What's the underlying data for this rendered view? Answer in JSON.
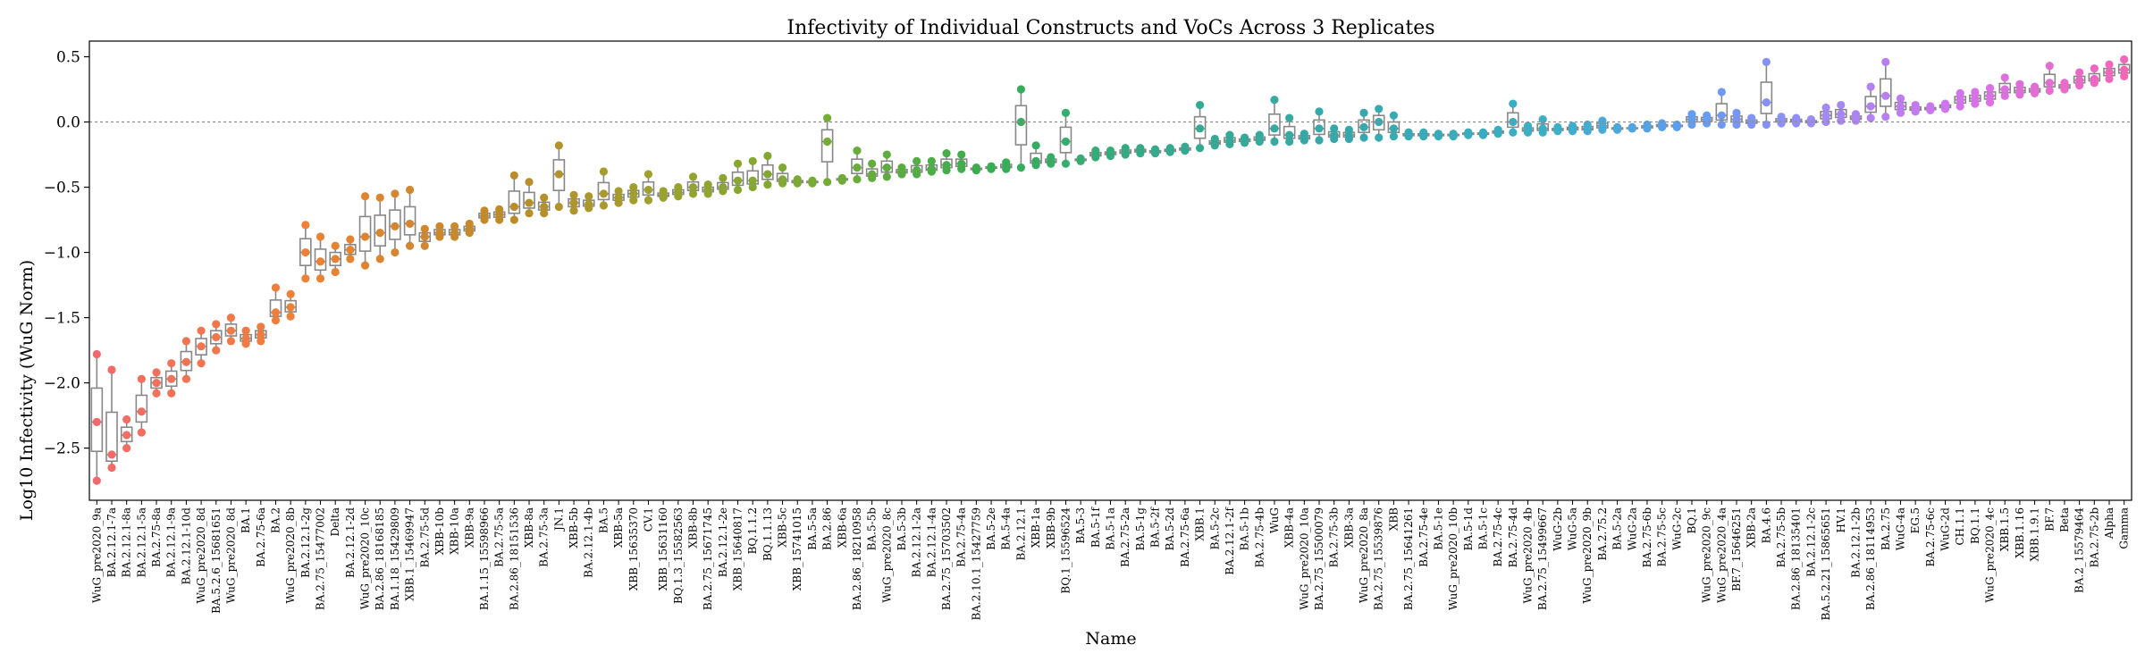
{
  "chart_data": {
    "type": "box",
    "title": "Infectivity of Individual Constructs and VoCs Across 3 Replicates",
    "xlabel": "Name",
    "ylabel": "Log10 Infectivity (WuG Norm)",
    "ylim": [
      -2.9,
      0.62
    ],
    "yticks": [
      -2.5,
      -2.0,
      -1.5,
      -1.0,
      -0.5,
      0.0,
      0.5
    ],
    "ytick_labels": [
      "−2.5",
      "−2.0",
      "−1.5",
      "−1.0",
      "−0.5",
      "0.0",
      "0.5"
    ],
    "reference_line": 0.0,
    "grid": false,
    "categories": [
      "WuG_pre2020_9a",
      "BA.2.12.1-7a",
      "BA.2.12.1-8a",
      "BA.2.12.1-5a",
      "BA.2.75-8a",
      "BA.2.12.1-9a",
      "BA.2.12.1-10d",
      "WuG_pre2020_8d",
      "BA.5.2.6_15681651",
      "WuG_pre2020_8d",
      "BA.1",
      "BA.2.75-6a",
      "BA.2",
      "WuG_pre2020_8b",
      "BA.2.12.1-2g",
      "BA.2.75_15477002",
      "Delta",
      "BA.2.12.1-2d",
      "WuG_pre2020_10c",
      "BA.2.86_18168185",
      "BA.1.18_15429809",
      "XBB.1_15469947",
      "BA.2.75-5d",
      "XBB-10b",
      "XBB-10a",
      "XBB-9a",
      "BA.1.15_15598966",
      "BA.2.75-5a",
      "BA.2.86_18151536",
      "XBB-8a",
      "BA.2.75-3a",
      "JN.1",
      "XBB-5b",
      "BA.2.12.1-4b",
      "BA.5",
      "XBB-5a",
      "XBB_15635370",
      "CV.1",
      "XBB_15631160",
      "BQ.1.3_15582563",
      "XBB-8b",
      "BA.2.75_15671745",
      "BA.2.12.1-2e",
      "XBB_15640817",
      "BQ.1.1.2",
      "BQ.1.1.13",
      "XBB-5c",
      "XBB_15741015",
      "BA.5-5a",
      "BA.2.86",
      "XBB-6a",
      "BA.2.86_18210958",
      "BA.5-5b",
      "WuG_pre2020_8c",
      "BA.5-3b",
      "BA.2.12.1-2a",
      "BA.2.12.1-4a",
      "BA.2.75_15703502",
      "BA.2.75-4a",
      "BA.2.10.1_15427759",
      "BA.5-2e",
      "BA.5-4a",
      "BA.2.12.1",
      "XBB-1a",
      "XBB-9b",
      "BQ.1_15596524",
      "BA.5-3",
      "BA.5-1f",
      "BA.5-1a",
      "BA.2.75-2a",
      "BA.5-1g",
      "BA.5-2f",
      "BA.5-2d",
      "BA.2.75-6a",
      "XBB.1",
      "BA.5-2c",
      "BA.2.12.1-2f",
      "BA.5-1b",
      "BA.2.75-4b",
      "WuG",
      "XBB-4a",
      "WuG_pre2020_10a",
      "BA.2.75_15500079",
      "BA.2.75-3b",
      "XBB-3a",
      "WuG_pre2020_8a",
      "BA.2.75_15539876",
      "XBB",
      "BA.2.75_15641261",
      "BA.2.75-4e",
      "BA.5-1e",
      "WuG_pre2020_10b",
      "BA.5-1d",
      "BA.5-1c",
      "BA.2.75-4c",
      "BA.2.75-4d",
      "WuG_pre2020_4b",
      "BA.2.75_15499667",
      "WuG-2b",
      "WuG-5a",
      "WuG_pre2020_9b",
      "BA.2.75.2",
      "BA.5-2a",
      "WuG-2a",
      "BA.2.75-6b",
      "BA.2.75-5c",
      "WuG-2c",
      "BQ.1",
      "WuG_pre2020_9c",
      "WuG_pre2020_4a",
      "BF.7_15646251",
      "XBB-2a",
      "BA.4.6",
      "BA.2.75-5b",
      "BA.2.86_18135401",
      "BA.2.12.1-2c",
      "BA.5.2.21_15865651",
      "HV.1",
      "BA.2.12.1-2b",
      "BA.2.86_18114953",
      "BA.2.75",
      "WuG-4a",
      "EG.5",
      "BA.2.75-6c",
      "WuG-2d",
      "CH.1.1",
      "BQ.1.1",
      "WuG_pre2020_4c",
      "XBB.1.5",
      "XBB.1.16",
      "XBB.1.9.1",
      "BF.7",
      "Beta",
      "BA.2_15579464",
      "BA.2.75-2b",
      "Alpha",
      "Gamma"
    ],
    "values": [
      [
        -2.75,
        -2.3,
        -1.78
      ],
      [
        -2.65,
        -2.55,
        -1.9
      ],
      [
        -2.5,
        -2.4,
        -2.28
      ],
      [
        -2.38,
        -2.22,
        -1.97
      ],
      [
        -2.08,
        -2.0,
        -1.92
      ],
      [
        -2.08,
        -1.97,
        -1.85
      ],
      [
        -1.97,
        -1.84,
        -1.68
      ],
      [
        -1.85,
        -1.72,
        -1.6
      ],
      [
        -1.75,
        -1.65,
        -1.55
      ],
      [
        -1.68,
        -1.6,
        -1.5
      ],
      [
        -1.7,
        -1.66,
        -1.6
      ],
      [
        -1.68,
        -1.63,
        -1.57
      ],
      [
        -1.52,
        -1.46,
        -1.27
      ],
      [
        -1.49,
        -1.42,
        -1.32
      ],
      [
        -1.2,
        -1.0,
        -0.79
      ],
      [
        -1.2,
        -1.07,
        -0.88
      ],
      [
        -1.15,
        -1.05,
        -0.95
      ],
      [
        -1.05,
        -0.98,
        -0.9
      ],
      [
        -1.1,
        -0.88,
        -0.57
      ],
      [
        -1.05,
        -0.85,
        -0.58
      ],
      [
        -1.0,
        -0.8,
        -0.55
      ],
      [
        -0.95,
        -0.78,
        -0.52
      ],
      [
        -0.95,
        -0.88,
        -0.82
      ],
      [
        -0.88,
        -0.85,
        -0.8
      ],
      [
        -0.88,
        -0.85,
        -0.8
      ],
      [
        -0.85,
        -0.82,
        -0.78
      ],
      [
        -0.75,
        -0.72,
        -0.68
      ],
      [
        -0.75,
        -0.71,
        -0.67
      ],
      [
        -0.75,
        -0.65,
        -0.41
      ],
      [
        -0.7,
        -0.62,
        -0.46
      ],
      [
        -0.7,
        -0.65,
        -0.58
      ],
      [
        -0.65,
        -0.4,
        -0.18
      ],
      [
        -0.68,
        -0.62,
        -0.56
      ],
      [
        -0.66,
        -0.63,
        -0.57
      ],
      [
        -0.64,
        -0.55,
        -0.38
      ],
      [
        -0.62,
        -0.58,
        -0.53
      ],
      [
        -0.6,
        -0.55,
        -0.5
      ],
      [
        -0.6,
        -0.52,
        -0.4
      ],
      [
        -0.58,
        -0.56,
        -0.53
      ],
      [
        -0.57,
        -0.54,
        -0.5
      ],
      [
        -0.55,
        -0.5,
        -0.42
      ],
      [
        -0.55,
        -0.52,
        -0.48
      ],
      [
        -0.53,
        -0.5,
        -0.43
      ],
      [
        -0.52,
        -0.45,
        -0.32
      ],
      [
        -0.5,
        -0.45,
        -0.3
      ],
      [
        -0.48,
        -0.4,
        -0.26
      ],
      [
        -0.47,
        -0.44,
        -0.35
      ],
      [
        -0.47,
        -0.46,
        -0.44
      ],
      [
        -0.47,
        -0.46,
        -0.45
      ],
      [
        -0.46,
        -0.15,
        0.03
      ],
      [
        -0.45,
        -0.44,
        -0.43
      ],
      [
        -0.44,
        -0.35,
        -0.22
      ],
      [
        -0.43,
        -0.4,
        -0.32
      ],
      [
        -0.42,
        -0.35,
        -0.25
      ],
      [
        -0.4,
        -0.38,
        -0.35
      ],
      [
        -0.4,
        -0.37,
        -0.3
      ],
      [
        -0.38,
        -0.36,
        -0.3
      ],
      [
        -0.37,
        -0.33,
        -0.24
      ],
      [
        -0.36,
        -0.32,
        -0.25
      ],
      [
        -0.37,
        -0.36,
        -0.35
      ],
      [
        -0.36,
        -0.35,
        -0.34
      ],
      [
        -0.36,
        -0.34,
        -0.31
      ],
      [
        -0.35,
        0.0,
        0.25
      ],
      [
        -0.33,
        -0.3,
        -0.18
      ],
      [
        -0.32,
        -0.3,
        -0.27
      ],
      [
        -0.32,
        -0.15,
        0.07
      ],
      [
        -0.3,
        -0.29,
        -0.28
      ],
      [
        -0.27,
        -0.25,
        -0.22
      ],
      [
        -0.26,
        -0.24,
        -0.22
      ],
      [
        -0.25,
        -0.23,
        -0.2
      ],
      [
        -0.24,
        -0.22,
        -0.2
      ],
      [
        -0.24,
        -0.23,
        -0.21
      ],
      [
        -0.23,
        -0.22,
        -0.2
      ],
      [
        -0.22,
        -0.21,
        -0.19
      ],
      [
        -0.2,
        -0.05,
        0.13
      ],
      [
        -0.18,
        -0.16,
        -0.13
      ],
      [
        -0.17,
        -0.14,
        -0.1
      ],
      [
        -0.16,
        -0.14,
        -0.12
      ],
      [
        -0.15,
        -0.13,
        -0.1
      ],
      [
        -0.15,
        -0.05,
        0.17
      ],
      [
        -0.15,
        -0.1,
        0.03
      ],
      [
        -0.14,
        -0.12,
        -0.09
      ],
      [
        -0.14,
        -0.05,
        0.08
      ],
      [
        -0.13,
        -0.1,
        -0.05
      ],
      [
        -0.13,
        -0.1,
        -0.06
      ],
      [
        -0.12,
        -0.04,
        0.07
      ],
      [
        -0.12,
        0.0,
        0.1
      ],
      [
        -0.11,
        -0.05,
        0.05
      ],
      [
        -0.11,
        -0.1,
        -0.08
      ],
      [
        -0.11,
        -0.1,
        -0.08
      ],
      [
        -0.11,
        -0.1,
        -0.09
      ],
      [
        -0.11,
        -0.1,
        -0.09
      ],
      [
        -0.1,
        -0.09,
        -0.08
      ],
      [
        -0.1,
        -0.09,
        -0.08
      ],
      [
        -0.09,
        -0.08,
        -0.06
      ],
      [
        -0.08,
        0.0,
        0.14
      ],
      [
        -0.08,
        -0.06,
        -0.03
      ],
      [
        -0.08,
        -0.05,
        0.02
      ],
      [
        -0.07,
        -0.06,
        -0.04
      ],
      [
        -0.07,
        -0.05,
        -0.03
      ],
      [
        -0.07,
        -0.05,
        -0.02
      ],
      [
        -0.06,
        -0.03,
        0.01
      ],
      [
        -0.06,
        -0.05,
        -0.04
      ],
      [
        -0.05,
        -0.05,
        -0.04
      ],
      [
        -0.05,
        -0.04,
        -0.02
      ],
      [
        -0.04,
        -0.03,
        -0.01
      ],
      [
        -0.04,
        -0.03,
        -0.02
      ],
      [
        -0.02,
        0.02,
        0.06
      ],
      [
        -0.01,
        0.02,
        0.05
      ],
      [
        -0.02,
        0.05,
        0.23
      ],
      [
        -0.02,
        0.02,
        0.07
      ],
      [
        -0.02,
        0.0,
        0.03
      ],
      [
        -0.02,
        0.15,
        0.46
      ],
      [
        -0.01,
        0.01,
        0.04
      ],
      [
        -0.01,
        0.01,
        0.03
      ],
      [
        -0.01,
        0.0,
        0.02
      ],
      [
        0.0,
        0.05,
        0.11
      ],
      [
        0.01,
        0.06,
        0.13
      ],
      [
        0.01,
        0.03,
        0.06
      ],
      [
        0.03,
        0.12,
        0.27
      ],
      [
        0.04,
        0.2,
        0.46
      ],
      [
        0.07,
        0.12,
        0.18
      ],
      [
        0.08,
        0.1,
        0.13
      ],
      [
        0.09,
        0.1,
        0.12
      ],
      [
        0.1,
        0.12,
        0.14
      ],
      [
        0.12,
        0.17,
        0.22
      ],
      [
        0.14,
        0.18,
        0.23
      ],
      [
        0.15,
        0.2,
        0.26
      ],
      [
        0.2,
        0.25,
        0.34
      ],
      [
        0.21,
        0.24,
        0.29
      ],
      [
        0.22,
        0.24,
        0.27
      ],
      [
        0.24,
        0.3,
        0.43
      ],
      [
        0.25,
        0.27,
        0.3
      ],
      [
        0.28,
        0.32,
        0.38
      ],
      [
        0.3,
        0.33,
        0.41
      ],
      [
        0.33,
        0.38,
        0.44
      ],
      [
        0.35,
        0.4,
        0.48
      ]
    ]
  }
}
